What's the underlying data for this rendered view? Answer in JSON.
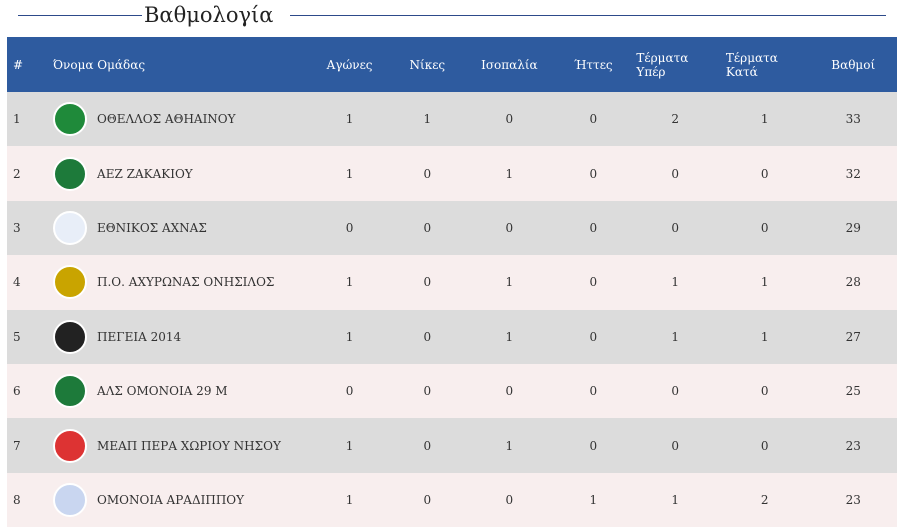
{
  "title": "Βαθμολογία",
  "table": {
    "header": [
      "#",
      "Όνομα Ομάδας",
      "Αγώνες",
      "Νίκες",
      "Ισοπαλία",
      "Ήττες",
      "Τέρματα Υπέρ",
      "Τέρματα Κατά",
      "Βαθμοί"
    ],
    "rows": [
      [
        "1",
        "ΟΘΕΛΛΟΣ ΑΘΗΑΙΝΟΥ",
        "1",
        "1",
        "0",
        "0",
        "2",
        "1",
        "33"
      ],
      [
        "2",
        "ΑΕΖ ΖΑΚΑΚΙΟΥ",
        "1",
        "0",
        "1",
        "0",
        "0",
        "0",
        "32"
      ],
      [
        "3",
        "ΕΘΝΙΚΟΣ ΑΧΝΑΣ",
        "0",
        "0",
        "0",
        "0",
        "0",
        "0",
        "29"
      ],
      [
        "4",
        "Π.Ο. ΑΧΥΡΩΝΑΣ ΟΝΗΣΙΛΟΣ",
        "1",
        "0",
        "1",
        "0",
        "1",
        "1",
        "28"
      ],
      [
        "5",
        "ΠΕΓΕΙΑ 2014",
        "1",
        "0",
        "1",
        "0",
        "1",
        "1",
        "27"
      ],
      [
        "6",
        "ΑΛΣ ΟΜΟΝΟΙΑ 29 Μ",
        "0",
        "0",
        "0",
        "0",
        "0",
        "0",
        "25"
      ],
      [
        "7",
        "ΜΕΑΠ ΠΕΡΑ ΧΩΡΙΟΥ ΝΗΣΟΥ",
        "1",
        "0",
        "1",
        "0",
        "0",
        "0",
        "23"
      ],
      [
        "8",
        "ΟΜΟΝΟΙΑ ΑΡΑΔΙΠΠΟΥ",
        "1",
        "0",
        "0",
        "1",
        "1",
        "2",
        "23"
      ]
    ]
  }
}
